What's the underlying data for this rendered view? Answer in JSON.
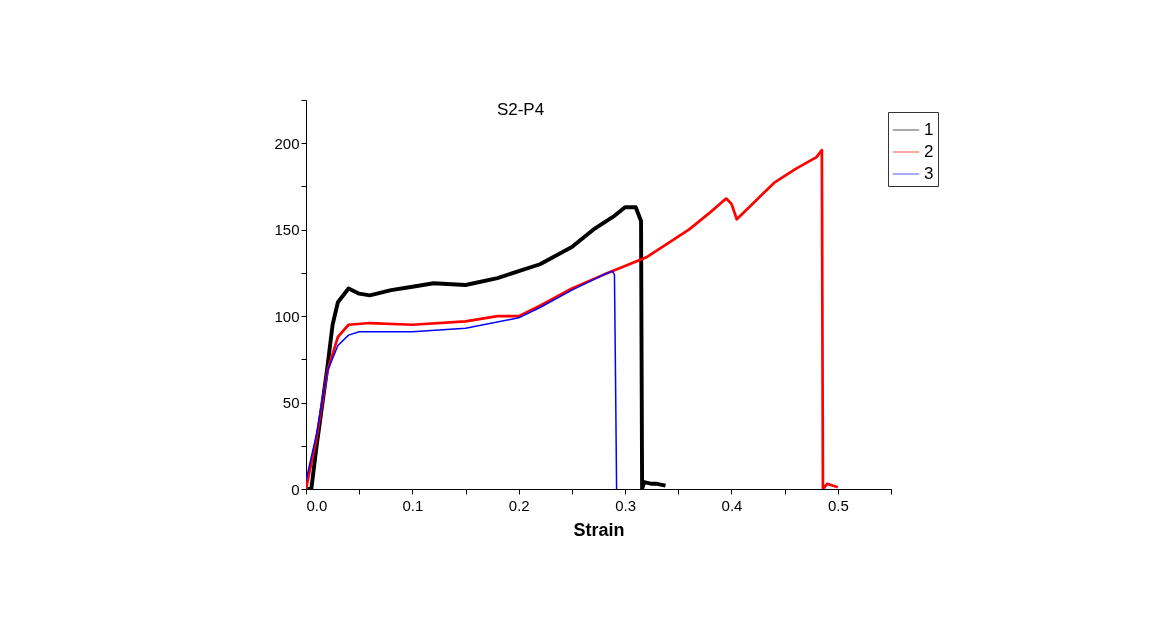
{
  "chart_data": {
    "type": "line",
    "title": "S2-P4",
    "xlabel": "Strain",
    "legend": "top right",
    "grid": false,
    "xlim": [
      0,
      0.55
    ],
    "xticks": [
      {
        "value": 0,
        "label": "0.0"
      },
      {
        "value": 0.05,
        "label": null
      },
      0.1,
      {
        "value": 0.15,
        "label": null
      },
      0.2,
      {
        "value": 0.25,
        "label": null
      },
      0.3,
      {
        "value": 0.35,
        "label": null
      },
      0.4,
      {
        "value": 0.45,
        "label": null
      },
      0.5,
      {
        "value": 0.55,
        "label": null
      }
    ],
    "ylim": [
      0,
      225
    ],
    "yticks": [
      0,
      {
        "value": 25,
        "label": null
      },
      50,
      {
        "value": 75,
        "label": null
      },
      100,
      {
        "value": 125,
        "label": null
      },
      150,
      {
        "value": 175,
        "label": null
      },
      200,
      {
        "value": 225,
        "label": null
      }
    ],
    "series": [
      {
        "name": "1",
        "color": "#000000",
        "x": [
          0,
          0.005,
          0.01,
          0.02,
          0.025,
          0.03,
          0.04,
          0.05,
          0.06,
          0.08,
          0.1,
          0.12,
          0.15,
          0.18,
          0.2,
          0.22,
          0.25,
          0.27,
          0.29,
          0.3,
          0.31,
          0.315,
          0.316,
          0.318,
          0.325,
          0.33,
          0.338
        ],
        "values": [
          0,
          0,
          25,
          70,
          95,
          108,
          116,
          113,
          112,
          115,
          117,
          119,
          118,
          122,
          126,
          130,
          140,
          150,
          158,
          163,
          163,
          155,
          0,
          4,
          3,
          3,
          2
        ]
      },
      {
        "name": "2",
        "color": "#ff0000",
        "x": [
          0,
          0.01,
          0.02,
          0.03,
          0.04,
          0.06,
          0.1,
          0.15,
          0.18,
          0.2,
          0.22,
          0.25,
          0.28,
          0.3,
          0.32,
          0.36,
          0.38,
          0.395,
          0.4,
          0.405,
          0.42,
          0.44,
          0.46,
          0.48,
          0.485,
          0.486,
          0.49,
          0.5
        ],
        "values": [
          0,
          30,
          68,
          88,
          95,
          96,
          95,
          97,
          100,
          100,
          106,
          116,
          124,
          129,
          134,
          150,
          160,
          168,
          165,
          156,
          165,
          177,
          185,
          192,
          196,
          0,
          3,
          1
        ]
      },
      {
        "name": "3",
        "color": "#0000ff",
        "x": [
          0,
          0.01,
          0.02,
          0.03,
          0.04,
          0.05,
          0.1,
          0.15,
          0.2,
          0.22,
          0.25,
          0.28,
          0.288,
          0.29,
          0.291,
          0.292
        ],
        "values": [
          5,
          32,
          68,
          83,
          89,
          91,
          91,
          93,
          99,
          105,
          115,
          124,
          126,
          124,
          65,
          0
        ]
      }
    ]
  }
}
